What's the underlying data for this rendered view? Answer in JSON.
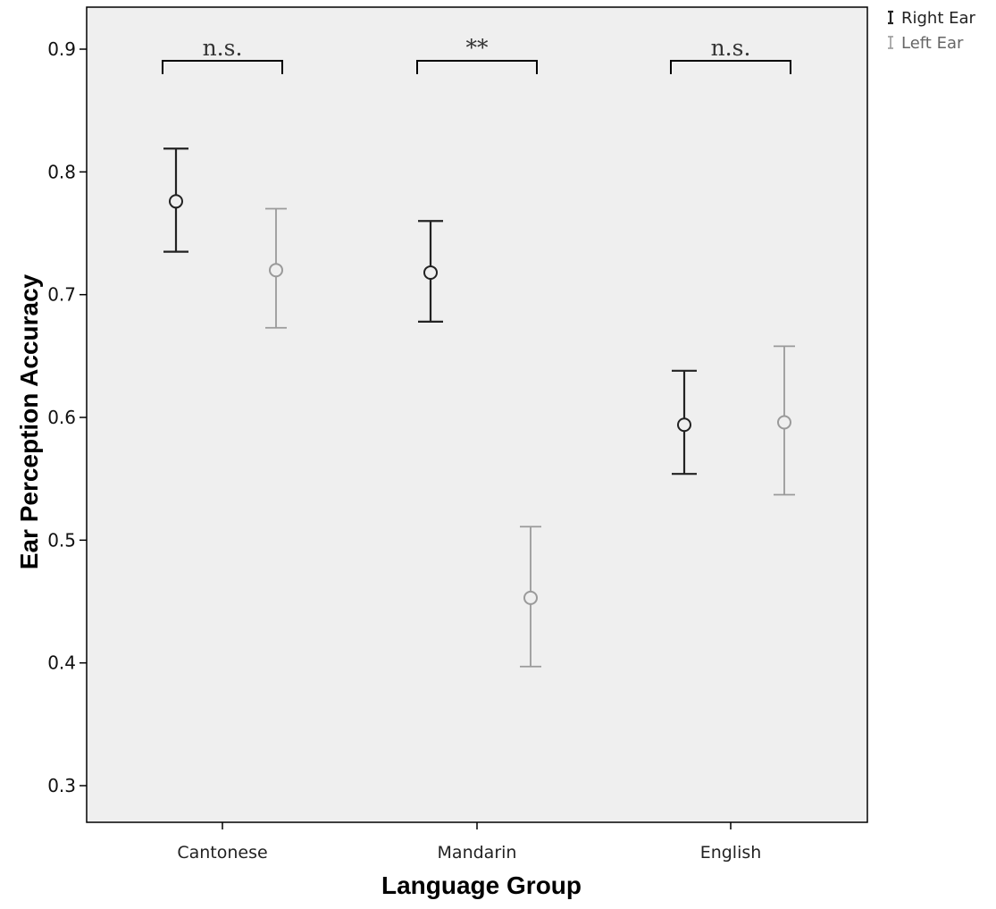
{
  "chart_data": {
    "type": "errorbar",
    "title": "",
    "xlabel": "Language Group",
    "ylabel": "Ear Perception Accuracy",
    "ylim": [
      0.26,
      0.93
    ],
    "yticks": [
      "0.3",
      "0.4",
      "0.5",
      "0.6",
      "0.7",
      "0.8",
      "0.9"
    ],
    "categories": [
      "Cantonese",
      "Mandarin",
      "English"
    ],
    "grid": false,
    "legend_position": "top-right, outside plot",
    "series": [
      {
        "name": "Right Ear",
        "color": "#222222",
        "mean": [
          0.776,
          0.718,
          0.594
        ],
        "lower": [
          0.735,
          0.678,
          0.554
        ],
        "upper": [
          0.819,
          0.76,
          0.638
        ]
      },
      {
        "name": "Left Ear",
        "color": "#9a9a9a",
        "mean": [
          0.72,
          0.453,
          0.596
        ],
        "lower": [
          0.673,
          0.397,
          0.537
        ],
        "upper": [
          0.77,
          0.511,
          0.658
        ]
      }
    ],
    "significance": [
      "n.s.",
      "**",
      "n.s."
    ],
    "plot_background": "#efefef"
  }
}
